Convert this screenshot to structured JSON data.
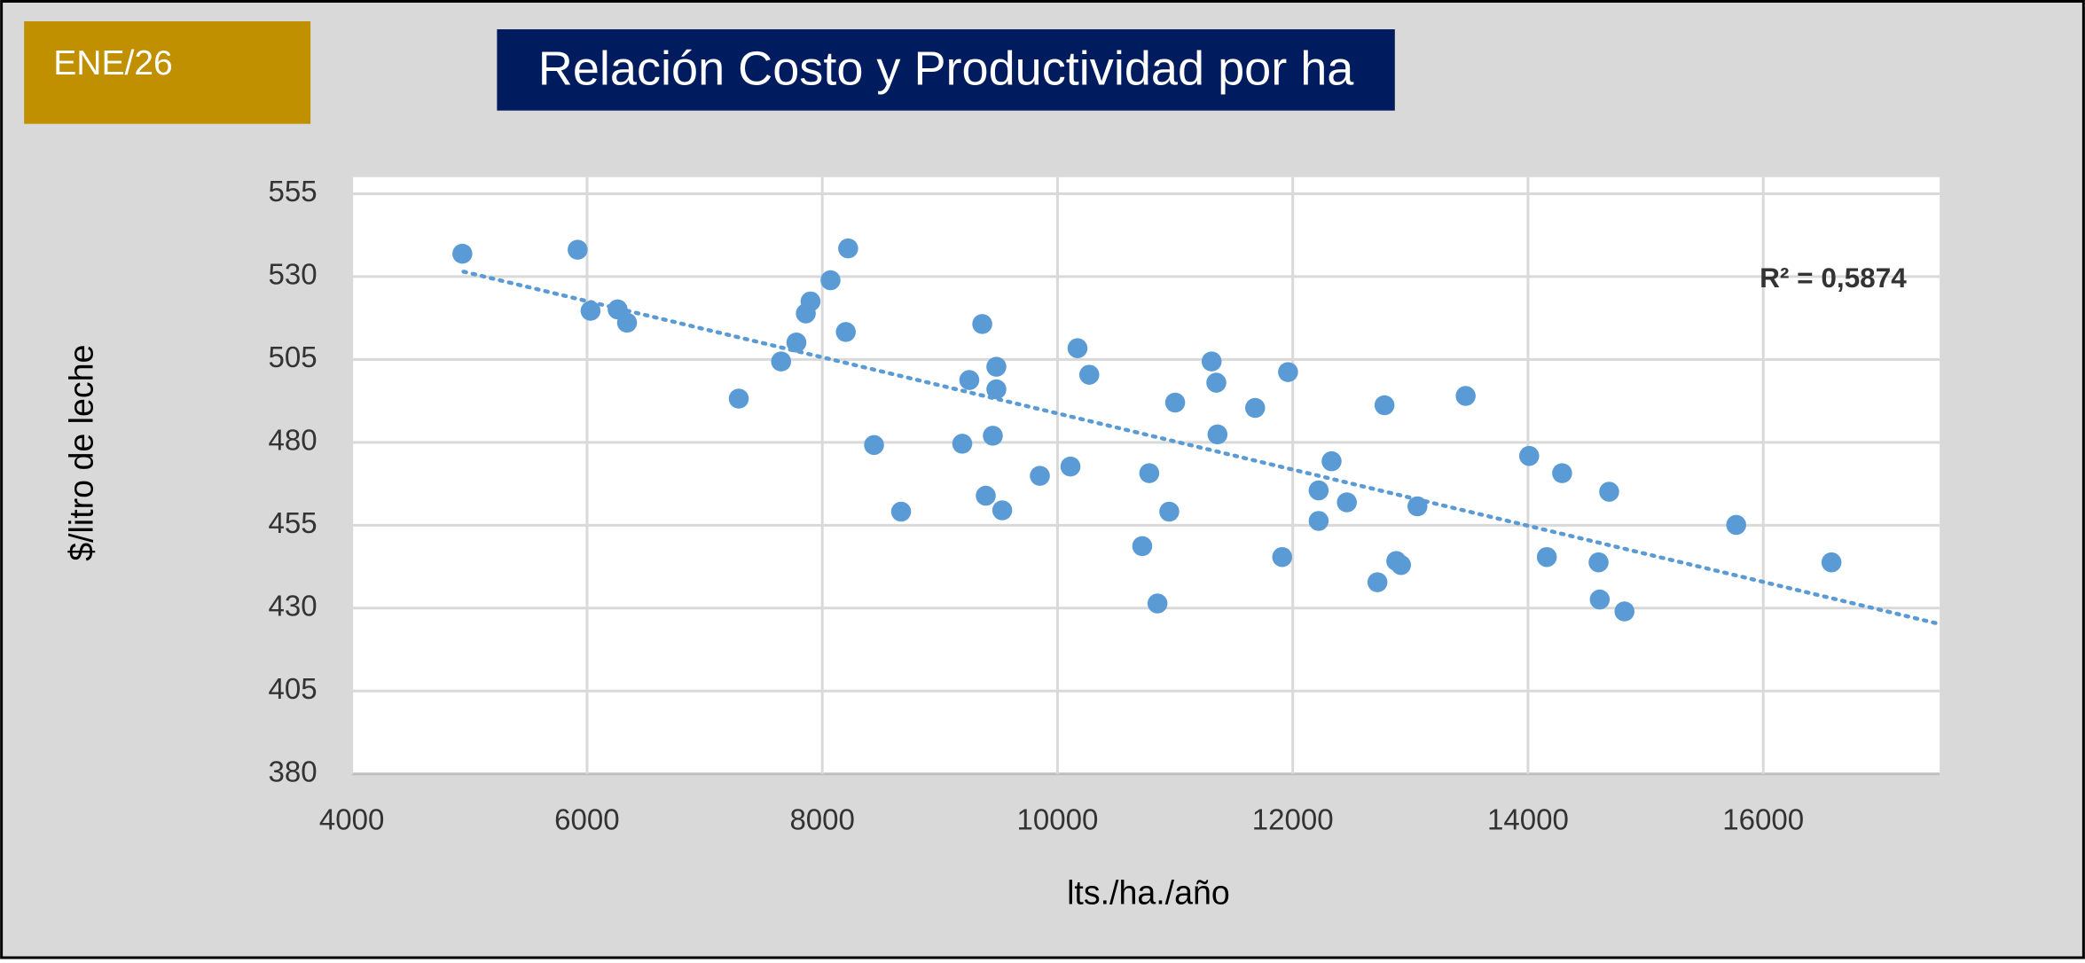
{
  "badge": "ENE/26",
  "chart_data": {
    "type": "scatter",
    "title": "Relación Costo y Productividad por ha",
    "x_label": "lts./ha./año",
    "y_label": "$/litro de leche",
    "annotation": "R² = 0,5874",
    "color": "#5b9bd5",
    "grid": true,
    "xlim": [
      4000,
      17500
    ],
    "ylim": [
      380,
      560
    ],
    "xticks": [
      4000,
      6000,
      8000,
      10000,
      12000,
      14000,
      16000
    ],
    "yticks": [
      380,
      405,
      430,
      455,
      480,
      505,
      530,
      555
    ],
    "trendline": {
      "x": [
        4950,
        17500
      ],
      "y": [
        531.5,
        425.2
      ]
    },
    "x": [
      4940,
      5920,
      6030,
      6260,
      6340,
      7290,
      7650,
      7780,
      7860,
      7900,
      8070,
      8200,
      8220,
      8440,
      8670,
      9190,
      9250,
      9360,
      9390,
      9450,
      9480,
      9480,
      9530,
      9850,
      10110,
      10170,
      10270,
      10720,
      10780,
      10850,
      10950,
      11000,
      11310,
      11350,
      11360,
      11680,
      11910,
      11960,
      12220,
      12220,
      12330,
      12460,
      12720,
      12780,
      12880,
      12920,
      13060,
      13470,
      14010,
      14160,
      14290,
      14600,
      14610,
      14690,
      14820,
      15770,
      16580
    ],
    "values": [
      536.9,
      538.1,
      519.7,
      520.1,
      516.1,
      493.2,
      504.4,
      510.1,
      518.9,
      522.5,
      528.9,
      513.3,
      538.5,
      479.2,
      459.1,
      479.6,
      498.8,
      515.7,
      463.9,
      482.0,
      502.8,
      496.0,
      459.5,
      469.9,
      472.7,
      508.4,
      500.4,
      448.7,
      470.7,
      431.4,
      459.1,
      492.0,
      504.4,
      498.0,
      482.4,
      490.4,
      445.4,
      501.2,
      465.5,
      456.3,
      474.3,
      461.9,
      437.8,
      491.2,
      444.2,
      443.0,
      460.7,
      494.0,
      475.9,
      445.4,
      470.7,
      443.8,
      432.6,
      465.1,
      429.0,
      455.1,
      443.8
    ]
  }
}
